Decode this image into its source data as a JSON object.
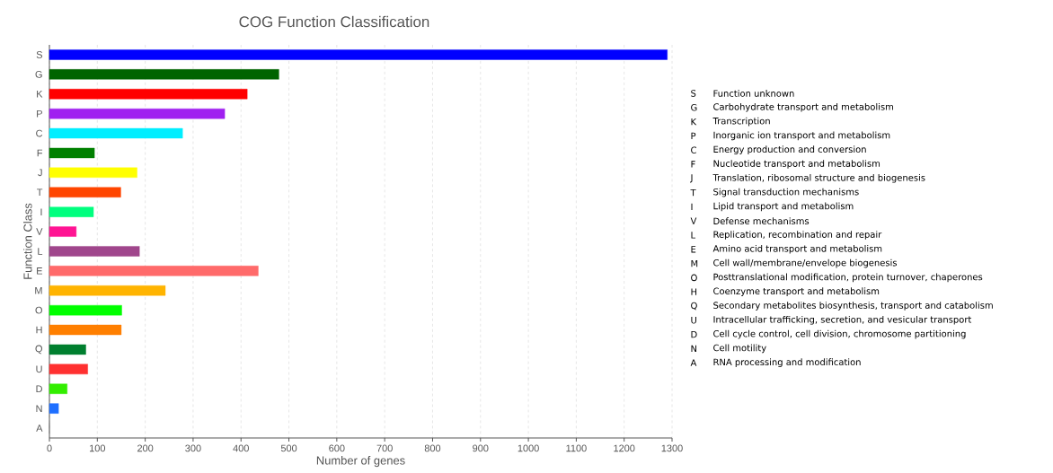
{
  "chart_data": {
    "type": "bar",
    "orientation": "horizontal",
    "title": "COG Function Classification",
    "xlabel": "Number of genes",
    "ylabel": "Function Class",
    "categories": [
      "S",
      "G",
      "K",
      "P",
      "C",
      "F",
      "J",
      "T",
      "I",
      "V",
      "L",
      "E",
      "M",
      "O",
      "H",
      "Q",
      "U",
      "D",
      "N",
      "A"
    ],
    "values": [
      1290,
      479,
      413,
      366,
      278,
      94,
      183,
      149,
      92,
      56,
      188,
      436,
      242,
      151,
      150,
      76,
      80,
      37,
      19,
      0
    ],
    "colors": [
      "#0000ff",
      "#006400",
      "#ff0000",
      "#a020f0",
      "#00eeff",
      "#008000",
      "#ffff00",
      "#ff4500",
      "#00ff7f",
      "#ff1493",
      "#a0468c",
      "#ff6a6a",
      "#ffb400",
      "#00ff00",
      "#ff7f00",
      "#007f2f",
      "#ff3030",
      "#33ee00",
      "#1e6fff",
      "#888888"
    ],
    "xlim": [
      0,
      1300
    ],
    "xticks": [
      0,
      100,
      200,
      300,
      400,
      500,
      600,
      700,
      800,
      900,
      1000,
      1100,
      1200,
      1300
    ],
    "grid": "x",
    "annotations": [
      "Function unknown",
      "Carbohydrate transport and metabolism",
      "Transcription",
      "Inorganic ion transport and metabolism",
      "Energy production and conversion",
      "Nucleotide transport and metabolism",
      "Translation, ribosomal structure and biogenesis",
      "Signal transduction mechanisms",
      "Lipid transport and metabolism",
      "Defense mechanisms",
      "Replication, recombination and repair",
      "Amino acid transport and metabolism",
      "Cell wall/membrane/envelope biogenesis",
      "Posttranslational modification, protein turnover, chaperones",
      "Coenzyme transport and metabolism",
      "Secondary metabolites biosynthesis, transport and catabolism",
      "Intracellular trafficking, secretion, and vesicular transport",
      "Cell cycle control, cell division, chromosome partitioning",
      "Cell motility",
      "RNA processing and modification"
    ]
  }
}
